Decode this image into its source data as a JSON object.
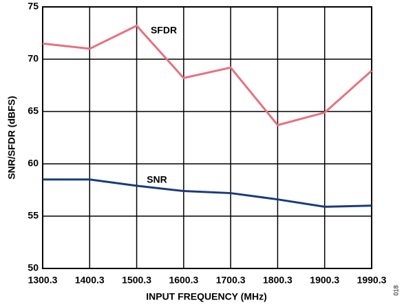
{
  "chart_data": {
    "type": "line",
    "xlabel": "INPUT FREQUENCY (MHz)",
    "ylabel": "SNR/SFDR (dBFS)",
    "annotation": "018",
    "categories": [
      "1300.3",
      "1400.3",
      "1500.3",
      "1600.3",
      "1700.3",
      "1800.3",
      "1900.3",
      "1990.3"
    ],
    "series": [
      {
        "name": "SFDR",
        "color": "#e8707f",
        "values": [
          71.5,
          71.0,
          73.2,
          68.2,
          69.2,
          63.7,
          64.9,
          68.9
        ]
      },
      {
        "name": "SNR",
        "color": "#1a3a7a",
        "values": [
          58.5,
          58.5,
          57.9,
          57.4,
          57.2,
          56.6,
          55.9,
          56.0
        ]
      }
    ],
    "ylim": [
      50,
      75
    ],
    "yticks": [
      50,
      55,
      60,
      65,
      70,
      75
    ],
    "grid": true
  }
}
